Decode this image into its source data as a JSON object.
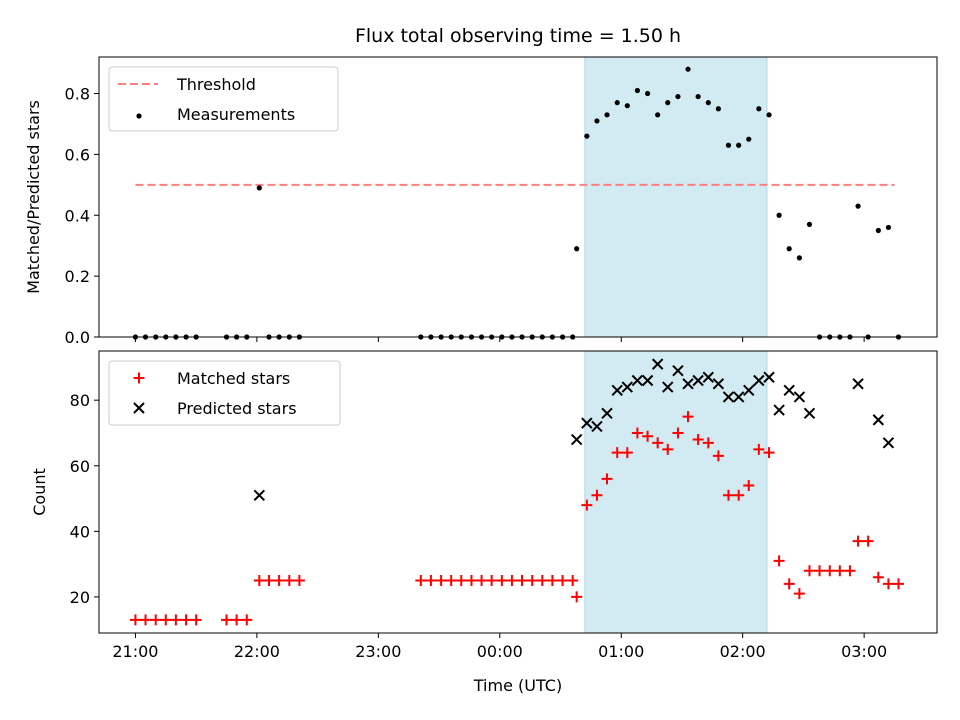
{
  "chart_data": {
    "title": "Flux total observing time = 1.50 h",
    "xlabel": "Time (UTC)",
    "x_ticks": [
      "21:00",
      "22:00",
      "23:00",
      "00:00",
      "01:00",
      "02:00",
      "03:00"
    ],
    "x_tick_hours": [
      21,
      22,
      23,
      24,
      25,
      26,
      27
    ],
    "xlim": [
      20.7,
      27.6
    ],
    "shaded_interval": {
      "x": [
        24.7,
        26.2
      ],
      "color": "#add8e6"
    },
    "panels": [
      {
        "type": "scatter",
        "ylabel": "Matched/Predicted stars",
        "ylim": [
          0,
          0.92
        ],
        "y_ticks": [
          0.0,
          0.2,
          0.4,
          0.6,
          0.8
        ],
        "y_tick_labels": [
          "0.0",
          "0.2",
          "0.4",
          "0.6",
          "0.8"
        ],
        "threshold": {
          "name": "Threshold",
          "y": 0.5,
          "x": [
            21.0,
            27.25
          ],
          "color": "#ff7f7f"
        },
        "legend": [
          "Threshold",
          "Measurements"
        ],
        "legend_position": "upper-left",
        "series": [
          {
            "name": "Measurements",
            "marker": "dot",
            "color": "#000000",
            "x": [
              21.0,
              21.083,
              21.167,
              21.25,
              21.333,
              21.417,
              21.5,
              21.75,
              21.833,
              21.917,
              22.02,
              22.1,
              22.183,
              22.267,
              22.35,
              23.35,
              23.433,
              23.517,
              23.6,
              23.683,
              23.767,
              23.85,
              23.933,
              24.017,
              24.1,
              24.183,
              24.267,
              24.35,
              24.433,
              24.517,
              24.6,
              24.633,
              24.717,
              24.8,
              24.883,
              24.967,
              25.05,
              25.133,
              25.217,
              25.3,
              25.383,
              25.467,
              25.55,
              25.633,
              25.717,
              25.8,
              25.883,
              25.967,
              26.05,
              26.133,
              26.217,
              26.3,
              26.383,
              26.467,
              26.55,
              26.633,
              26.717,
              26.8,
              26.883,
              26.95,
              27.033,
              27.117,
              27.2,
              27.283
            ],
            "y": [
              0.0,
              0.0,
              0.0,
              0.0,
              0.0,
              0.0,
              0.0,
              0.0,
              0.0,
              0.0,
              0.49,
              0.0,
              0.0,
              0.0,
              0.0,
              0.0,
              0.0,
              0.0,
              0.0,
              0.0,
              0.0,
              0.0,
              0.0,
              0.0,
              0.0,
              0.0,
              0.0,
              0.0,
              0.0,
              0.0,
              0.0,
              0.29,
              0.66,
              0.71,
              0.73,
              0.77,
              0.76,
              0.81,
              0.8,
              0.73,
              0.77,
              0.79,
              0.88,
              0.79,
              0.77,
              0.75,
              0.63,
              0.63,
              0.65,
              0.75,
              0.73,
              0.4,
              0.29,
              0.26,
              0.37,
              0.0,
              0.0,
              0.0,
              0.0,
              0.43,
              0.0,
              0.35,
              0.36,
              0.0
            ]
          }
        ]
      },
      {
        "type": "scatter",
        "ylabel": "Count",
        "ylim": [
          9,
          95
        ],
        "y_ticks": [
          20,
          40,
          60,
          80
        ],
        "y_tick_labels": [
          "20",
          "40",
          "60",
          "80"
        ],
        "legend": [
          "Matched stars",
          "Predicted stars"
        ],
        "legend_position": "upper-left",
        "series": [
          {
            "name": "Matched stars",
            "marker": "plus",
            "color": "#ff0000",
            "x": [
              21.0,
              21.083,
              21.167,
              21.25,
              21.333,
              21.417,
              21.5,
              21.75,
              21.833,
              21.917,
              22.02,
              22.1,
              22.183,
              22.267,
              22.35,
              23.35,
              23.433,
              23.517,
              23.6,
              23.683,
              23.767,
              23.85,
              23.933,
              24.017,
              24.1,
              24.183,
              24.267,
              24.35,
              24.433,
              24.517,
              24.6,
              24.633,
              24.717,
              24.8,
              24.883,
              24.967,
              25.05,
              25.133,
              25.217,
              25.3,
              25.383,
              25.467,
              25.55,
              25.633,
              25.717,
              25.8,
              25.883,
              25.967,
              26.05,
              26.133,
              26.217,
              26.3,
              26.383,
              26.467,
              26.55,
              26.633,
              26.717,
              26.8,
              26.883,
              26.95,
              27.033,
              27.117,
              27.2,
              27.283
            ],
            "y": [
              13,
              13,
              13,
              13,
              13,
              13,
              13,
              13,
              13,
              13,
              25,
              25,
              25,
              25,
              25,
              25,
              25,
              25,
              25,
              25,
              25,
              25,
              25,
              25,
              25,
              25,
              25,
              25,
              25,
              25,
              25,
              20,
              48,
              51,
              56,
              64,
              64,
              70,
              69,
              67,
              65,
              70,
              75,
              68,
              67,
              63,
              51,
              51,
              54,
              65,
              64,
              31,
              24,
              21,
              28,
              28,
              28,
              28,
              28,
              37,
              37,
              26,
              24,
              24
            ]
          },
          {
            "name": "Predicted stars",
            "marker": "x",
            "color": "#000000",
            "x": [
              22.02,
              24.633,
              24.717,
              24.8,
              24.883,
              24.967,
              25.05,
              25.133,
              25.217,
              25.3,
              25.383,
              25.467,
              25.55,
              25.633,
              25.717,
              25.8,
              25.883,
              25.967,
              26.05,
              26.133,
              26.217,
              26.3,
              26.383,
              26.467,
              26.55,
              26.95,
              27.117,
              27.2
            ],
            "y": [
              51,
              68,
              73,
              72,
              76,
              83,
              84,
              86,
              86,
              91,
              84,
              89,
              85,
              86,
              87,
              85,
              81,
              81,
              83,
              86,
              87,
              77,
              83,
              81,
              76,
              85,
              74,
              67
            ]
          }
        ]
      }
    ]
  }
}
